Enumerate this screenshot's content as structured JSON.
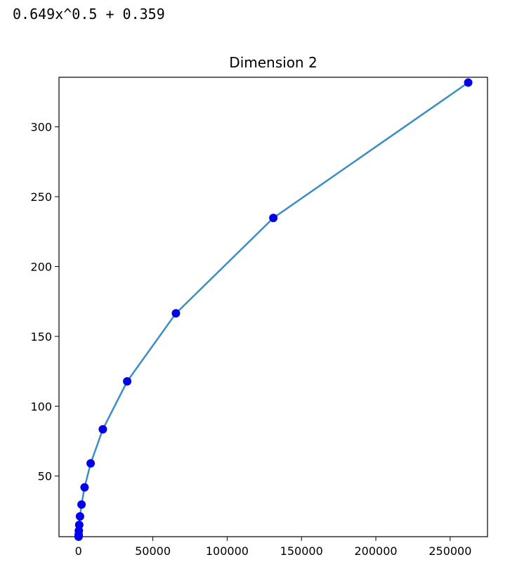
{
  "output_text": "0.649x^0.5 + 0.359",
  "chart_data": {
    "type": "line",
    "title": "Dimension 2",
    "xlabel": "",
    "ylabel": "",
    "xlim": [
      -13100,
      275100
    ],
    "ylim": [
      6.6,
      335.5
    ],
    "xticks": [
      0,
      50000,
      100000,
      150000,
      200000,
      250000
    ],
    "xtick_labels": [
      "0",
      "50000",
      "100000",
      "150000",
      "200000",
      "250000"
    ],
    "yticks": [
      50,
      100,
      150,
      200,
      250,
      300
    ],
    "ytick_labels": [
      "50",
      "100",
      "150",
      "200",
      "250",
      "300"
    ],
    "grid": false,
    "series": [
      {
        "line_color": "#3c8dc4",
        "marker_color": "#0000ee",
        "x": [
          64,
          128,
          256,
          512,
          1024,
          2048,
          4096,
          8192,
          16384,
          32768,
          65536,
          131072,
          262144
        ],
        "y": [
          6.6,
          8.0,
          10.8,
          15.0,
          21.1,
          29.6,
          41.9,
          59.1,
          83.5,
          117.8,
          166.5,
          234.8,
          331.7
        ]
      }
    ]
  }
}
